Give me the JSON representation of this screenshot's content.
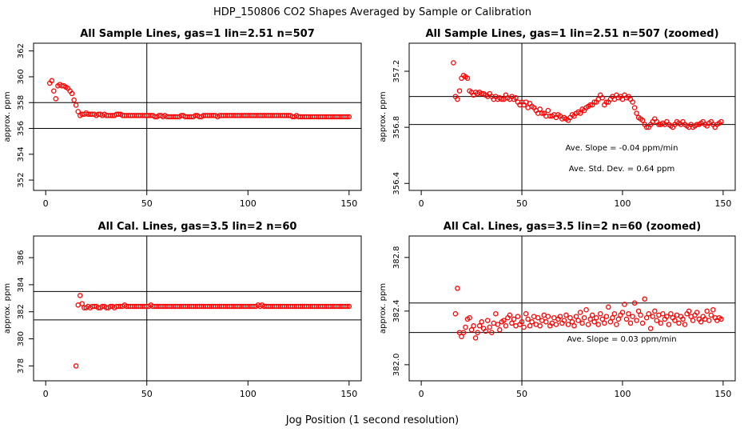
{
  "figure": {
    "title": "HDP_150806  CO2 Shapes Averaged by Sample or Calibration",
    "xlabel": "Jog Position (1 second resolution)"
  },
  "colors": {
    "points": "#ff0000",
    "axes": "#000000",
    "background": "#ffffff"
  },
  "chart_data": [
    {
      "type": "scatter",
      "title": "All Sample Lines, gas=1 lin=2.51 n=507",
      "ylabel": "approx. ppm",
      "xlim": [
        -6,
        156
      ],
      "ylim": [
        351.2,
        362.6
      ],
      "xticks": [
        0,
        50,
        100,
        150
      ],
      "yticks": [
        352,
        354,
        356,
        358,
        360,
        362
      ],
      "vline": 50,
      "hlines": [
        358,
        356
      ],
      "annotations": [],
      "series": [
        {
          "name": "sample",
          "x_start": 2,
          "x_step": 1,
          "values": [
            359.5,
            359.7,
            358.9,
            358.3,
            359.3,
            359.4,
            359.3,
            359.3,
            359.2,
            359.1,
            358.9,
            358.7,
            358.2,
            357.8,
            357.3,
            357.0,
            357.1,
            357.1,
            357.2,
            357.1,
            357.1,
            357.1,
            357.1,
            357.0,
            357.1,
            357.1,
            357.0,
            357.1,
            357.0,
            357.0,
            357.0,
            357.0,
            357.0,
            357.1,
            357.1,
            357.1,
            357.0,
            357.0,
            357.0,
            357.0,
            357.0,
            357.0,
            357.0,
            357.0,
            357.0,
            357.0,
            357.0,
            357.0,
            357.0,
            357.0,
            357.0,
            357.0,
            356.9,
            356.9,
            357.0,
            357.0,
            356.9,
            357.0,
            356.9,
            356.9,
            356.9,
            356.9,
            356.9,
            356.9,
            356.9,
            357.0,
            357.0,
            356.9,
            356.9,
            356.9,
            356.9,
            356.9,
            357.0,
            357.0,
            356.9,
            356.9,
            357.0,
            357.0,
            357.0,
            357.0,
            357.0,
            357.0,
            357.0,
            356.9,
            357.0,
            357.0,
            357.0,
            357.0,
            357.0,
            357.0,
            357.0,
            357.0,
            357.0,
            357.0,
            357.0,
            357.0,
            357.0,
            357.0,
            357.0,
            357.0,
            357.0,
            357.0,
            357.0,
            357.0,
            357.0,
            357.0,
            357.0,
            357.0,
            357.0,
            357.0,
            357.0,
            357.0,
            357.0,
            357.0,
            357.0,
            357.0,
            357.0,
            357.0,
            357.0,
            357.0,
            356.9,
            356.9,
            357.0,
            356.9,
            356.9,
            356.9,
            356.9,
            356.9,
            356.9,
            356.9,
            356.9,
            356.9,
            356.9,
            356.9,
            356.9,
            356.9,
            356.9,
            356.9,
            356.9,
            356.9,
            356.9,
            356.9,
            356.9,
            356.9,
            356.9,
            356.9,
            356.9,
            356.9,
            356.9
          ]
        }
      ]
    },
    {
      "type": "scatter",
      "title": "All Sample Lines, gas=1 lin=2.51 n=507 (zoomed)",
      "ylabel": "approx. ppm",
      "xlim": [
        -6,
        156
      ],
      "ylim": [
        356.35,
        357.4
      ],
      "xticks": [
        0,
        50,
        100,
        150
      ],
      "yticks": [
        356.4,
        356.8,
        357.2
      ],
      "vline": 50,
      "hlines": [
        357.02,
        356.82
      ],
      "annotations": [
        "Ave. Slope =  -0.04  ppm/min",
        "Ave. Std. Dev. =  0.64  ppm"
      ],
      "series": [
        {
          "name": "sample-zoom",
          "x_start": 16,
          "x_step": 1,
          "values": [
            357.26,
            357.02,
            357.0,
            357.06,
            357.15,
            357.17,
            357.16,
            357.15,
            357.06,
            357.05,
            357.03,
            357.05,
            357.04,
            357.05,
            357.04,
            357.04,
            357.03,
            357.02,
            357.04,
            357.02,
            357.0,
            357.02,
            357.0,
            357.01,
            357.0,
            357.0,
            357.03,
            357.01,
            357.0,
            357.02,
            357.0,
            357.01,
            356.98,
            356.96,
            356.98,
            356.96,
            356.98,
            356.94,
            356.97,
            356.95,
            356.94,
            356.92,
            356.9,
            356.93,
            356.9,
            356.9,
            356.88,
            356.92,
            356.88,
            356.88,
            356.89,
            356.87,
            356.89,
            356.88,
            356.86,
            356.87,
            356.86,
            356.85,
            356.87,
            356.89,
            356.88,
            356.9,
            356.91,
            356.9,
            356.93,
            356.92,
            356.94,
            356.95,
            356.96,
            356.96,
            356.98,
            356.98,
            357.0,
            357.03,
            357.01,
            356.96,
            356.98,
            356.98,
            357.0,
            357.02,
            357.0,
            357.03,
            357.01,
            357.02,
            357.0,
            357.03,
            357.01,
            357.02,
            357.0,
            356.98,
            356.94,
            356.9,
            356.87,
            356.86,
            356.85,
            356.82,
            356.8,
            356.8,
            356.82,
            356.84,
            356.86,
            356.84,
            356.82,
            356.82,
            356.83,
            356.82,
            356.84,
            356.82,
            356.81,
            356.8,
            356.82,
            356.84,
            356.83,
            356.82,
            356.84,
            356.82,
            356.81,
            356.8,
            356.82,
            356.8,
            356.81,
            356.82,
            356.82,
            356.83,
            356.84,
            356.82,
            356.81,
            356.83,
            356.84,
            356.82,
            356.8,
            356.82,
            356.83,
            356.84
          ]
        }
      ]
    },
    {
      "type": "scatter",
      "title": "All Cal. Lines, gas=3.5 lin=2 n=60",
      "ylabel": "approx. ppm",
      "xlim": [
        -6,
        156
      ],
      "ylim": [
        376.9,
        387.6
      ],
      "xticks": [
        0,
        50,
        100,
        150
      ],
      "yticks": [
        378,
        380,
        382,
        384,
        386
      ],
      "vline": 50,
      "hlines": [
        383.5,
        381.4
      ],
      "annotations": [],
      "series": [
        {
          "name": "cal",
          "x_start": 15,
          "x_step": 1,
          "values": [
            378.0,
            382.5,
            383.2,
            382.6,
            382.3,
            382.3,
            382.4,
            382.3,
            382.4,
            382.4,
            382.4,
            382.3,
            382.3,
            382.4,
            382.4,
            382.3,
            382.3,
            382.4,
            382.4,
            382.3,
            382.4,
            382.4,
            382.4,
            382.4,
            382.5,
            382.4,
            382.4,
            382.4,
            382.4,
            382.4,
            382.4,
            382.4,
            382.4,
            382.4,
            382.4,
            382.4,
            382.4,
            382.5,
            382.4,
            382.4,
            382.4,
            382.4,
            382.4,
            382.4,
            382.4,
            382.4,
            382.4,
            382.4,
            382.4,
            382.4,
            382.4,
            382.4,
            382.4,
            382.4,
            382.4,
            382.4,
            382.4,
            382.4,
            382.4,
            382.4,
            382.4,
            382.4,
            382.4,
            382.4,
            382.4,
            382.4,
            382.4,
            382.4,
            382.4,
            382.4,
            382.4,
            382.4,
            382.4,
            382.4,
            382.4,
            382.4,
            382.4,
            382.4,
            382.4,
            382.4,
            382.4,
            382.4,
            382.4,
            382.4,
            382.4,
            382.4,
            382.4,
            382.4,
            382.4,
            382.4,
            382.5,
            382.4,
            382.5,
            382.4,
            382.4,
            382.4,
            382.4,
            382.4,
            382.4,
            382.4,
            382.4,
            382.4,
            382.4,
            382.4,
            382.4,
            382.4,
            382.4,
            382.4,
            382.4,
            382.4,
            382.4,
            382.4,
            382.4,
            382.4,
            382.4,
            382.4,
            382.4,
            382.4,
            382.4,
            382.4,
            382.4,
            382.4,
            382.4,
            382.4,
            382.4,
            382.4,
            382.4,
            382.4,
            382.4,
            382.4,
            382.4,
            382.4,
            382.4,
            382.4,
            382.4,
            382.4
          ]
        }
      ]
    },
    {
      "type": "scatter",
      "title": "All Cal. Lines, gas=3.5 lin=2 n=60 (zoomed)",
      "ylabel": "approx. ppm",
      "xlim": [
        -6,
        156
      ],
      "ylim": [
        381.88,
        382.96
      ],
      "xticks": [
        0,
        50,
        100,
        150
      ],
      "yticks": [
        382.0,
        382.4,
        382.8
      ],
      "vline": 50,
      "hlines": [
        382.46,
        382.24
      ],
      "annotations": [
        "Ave. Slope =  0.03  ppm/min"
      ],
      "series": [
        {
          "name": "cal-zoom",
          "x_start": 17,
          "x_step": 1,
          "values": [
            382.38,
            382.57,
            382.24,
            382.21,
            382.24,
            382.28,
            382.34,
            382.35,
            382.26,
            382.29,
            382.2,
            382.24,
            382.29,
            382.32,
            382.27,
            382.25,
            382.33,
            382.28,
            382.24,
            382.31,
            382.38,
            382.3,
            382.26,
            382.32,
            382.33,
            382.29,
            382.35,
            382.37,
            382.31,
            382.34,
            382.29,
            382.36,
            382.3,
            382.32,
            382.28,
            382.38,
            382.34,
            382.29,
            382.32,
            382.36,
            382.3,
            382.35,
            382.29,
            382.33,
            382.37,
            382.32,
            382.36,
            382.29,
            382.31,
            382.35,
            382.3,
            382.34,
            382.36,
            382.31,
            382.33,
            382.37,
            382.3,
            382.35,
            382.32,
            382.29,
            382.36,
            382.33,
            382.39,
            382.31,
            382.35,
            382.41,
            382.3,
            382.34,
            382.37,
            382.32,
            382.35,
            382.3,
            382.38,
            382.34,
            382.31,
            382.36,
            382.43,
            382.32,
            382.35,
            382.38,
            382.3,
            382.34,
            382.37,
            382.39,
            382.45,
            382.34,
            382.38,
            382.31,
            382.36,
            382.46,
            382.33,
            382.4,
            382.37,
            382.31,
            382.49,
            382.35,
            382.38,
            382.27,
            382.36,
            382.4,
            382.33,
            382.37,
            382.31,
            382.38,
            382.34,
            382.36,
            382.3,
            382.38,
            382.35,
            382.33,
            382.37,
            382.31,
            382.36,
            382.34,
            382.3,
            382.38,
            382.4,
            382.36,
            382.33,
            382.37,
            382.39,
            382.34,
            382.32,
            382.36,
            382.34,
            382.4,
            382.33,
            382.37,
            382.41,
            382.35,
            382.33,
            382.35,
            382.34
          ]
        }
      ]
    }
  ]
}
